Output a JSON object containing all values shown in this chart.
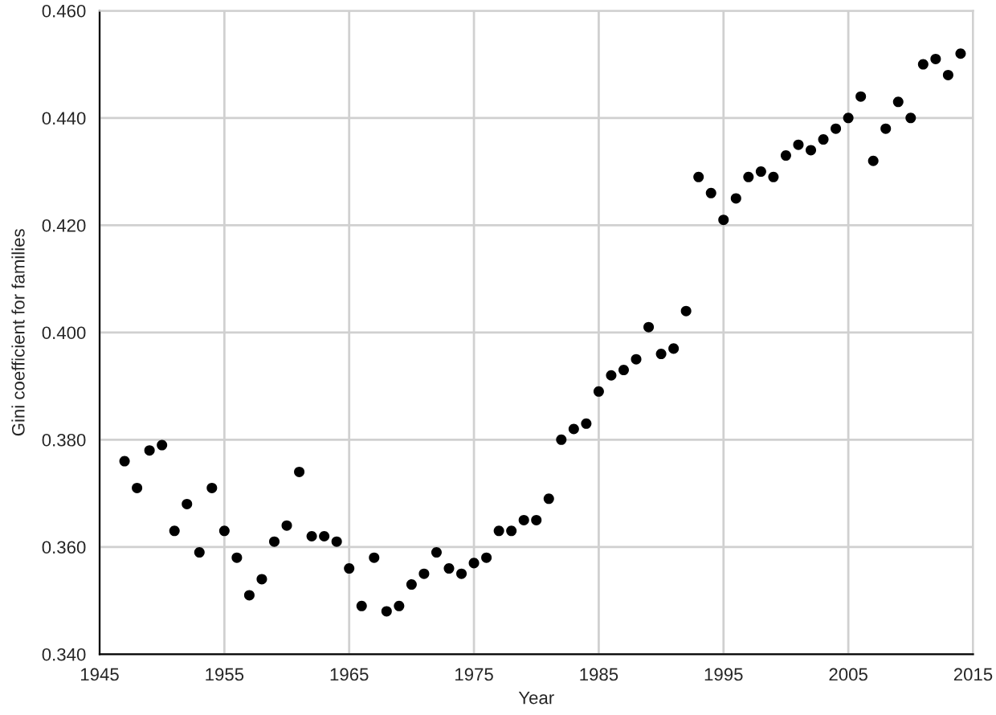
{
  "chart_data": {
    "type": "scatter",
    "xlabel": "Year",
    "ylabel": "Gini coefficient for families",
    "x": [
      1947,
      1948,
      1949,
      1950,
      1951,
      1952,
      1953,
      1954,
      1955,
      1956,
      1957,
      1958,
      1959,
      1960,
      1961,
      1962,
      1963,
      1964,
      1965,
      1966,
      1967,
      1968,
      1969,
      1970,
      1971,
      1972,
      1973,
      1974,
      1975,
      1976,
      1977,
      1978,
      1979,
      1980,
      1981,
      1982,
      1983,
      1984,
      1985,
      1986,
      1987,
      1988,
      1989,
      1990,
      1991,
      1992,
      1993,
      1994,
      1995,
      1996,
      1997,
      1998,
      1999,
      2000,
      2001,
      2002,
      2003,
      2004,
      2005,
      2006,
      2007,
      2008,
      2009,
      2010,
      2011,
      2012,
      2013,
      2014
    ],
    "series": [
      {
        "color": "#000000",
        "values": [
          0.376,
          0.371,
          0.378,
          0.379,
          0.363,
          0.368,
          0.359,
          0.371,
          0.363,
          0.358,
          0.351,
          0.354,
          0.361,
          0.364,
          0.374,
          0.362,
          0.362,
          0.361,
          0.356,
          0.349,
          0.358,
          0.348,
          0.349,
          0.353,
          0.355,
          0.359,
          0.356,
          0.355,
          0.357,
          0.358,
          0.363,
          0.363,
          0.365,
          0.365,
          0.369,
          0.38,
          0.382,
          0.383,
          0.389,
          0.392,
          0.393,
          0.395,
          0.401,
          0.396,
          0.397,
          0.404,
          0.429,
          0.426,
          0.421,
          0.425,
          0.429,
          0.43,
          0.429,
          0.433,
          0.435,
          0.434,
          0.436,
          0.438,
          0.44,
          0.444,
          0.432,
          0.438,
          0.443,
          0.44,
          0.45,
          0.451,
          0.448,
          0.452
        ]
      }
    ],
    "xlim": [
      1945,
      2015
    ],
    "xticks": [
      1945,
      1955,
      1965,
      1975,
      1985,
      1995,
      2005,
      2015
    ],
    "ylim": [
      0.34,
      0.46
    ],
    "yticks": [
      {
        "value": 0.34,
        "label": "0.340"
      },
      {
        "value": 0.36,
        "label": "0.360"
      },
      {
        "value": 0.38,
        "label": "0.380"
      },
      {
        "value": 0.4,
        "label": "0.400"
      },
      {
        "value": 0.42,
        "label": "0.420"
      },
      {
        "value": 0.44,
        "label": "0.440"
      },
      {
        "value": 0.46,
        "label": "0.460"
      }
    ],
    "grid": true,
    "marker": "circle"
  }
}
